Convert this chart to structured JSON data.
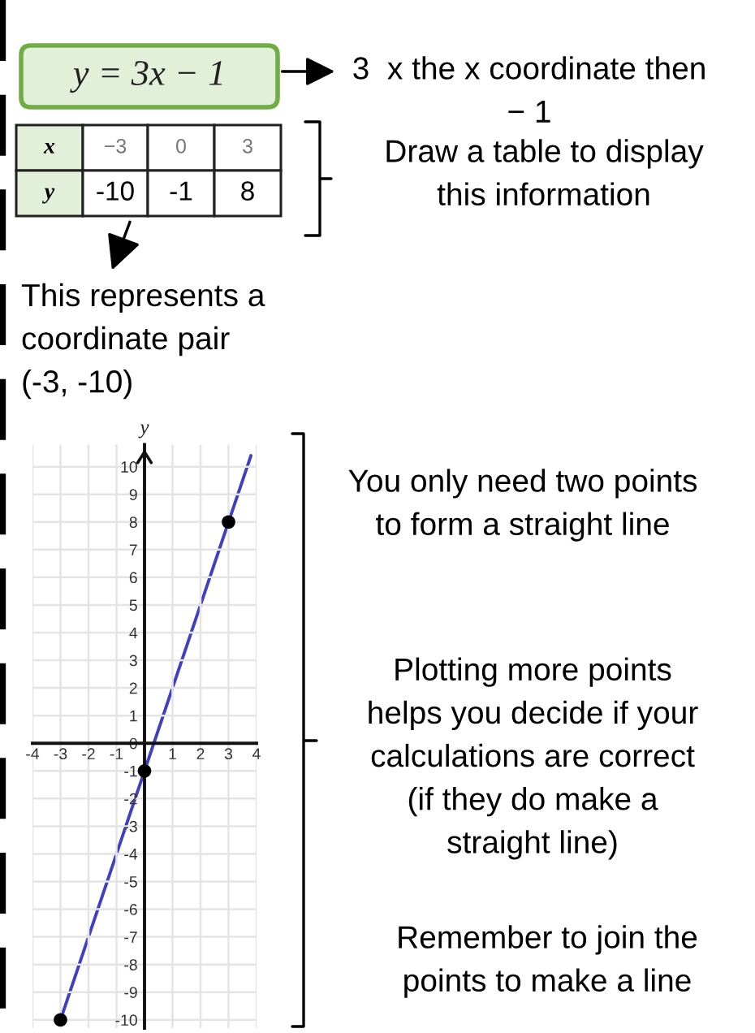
{
  "chart_data": {
    "type": "line",
    "title": "y = 3x − 1",
    "ylabel": "y",
    "annotations": [
      "3  x the x coordinate then\n− 1",
      "x",
      "−3",
      "0",
      "3",
      "y",
      "-10",
      "-1",
      "8",
      "Draw a table to display\nthis information",
      "This represents a\ncoordinate pair\n(-3, -10)",
      "You only need two points\nto form a straight line",
      "Plotting more points\nhelps you decide if your\ncalculations are correct\n(if they do make a\nstraight line)",
      "Remember to join the\npoints to make a line"
    ],
    "series": [
      {
        "color": "#4040c0",
        "x": [
          -3,
          3.8
        ],
        "values": [
          -10,
          10.4
        ]
      },
      {
        "type": "scatter",
        "color": "#000000",
        "marker": "circle",
        "x": [
          -3,
          0,
          3
        ],
        "values": [
          -10,
          -1,
          8
        ]
      }
    ],
    "xlim": [
      -4,
      4
    ],
    "ylim": [
      -10.3,
      10.8
    ],
    "xticks": [
      -4,
      -3,
      -2,
      -1,
      1,
      2,
      3,
      4
    ],
    "yticks": [
      -10,
      -9,
      -8,
      -7,
      -6,
      -5,
      -4,
      -3,
      -2,
      -1,
      0,
      1,
      2,
      3,
      4,
      5,
      6,
      7,
      8,
      9,
      10
    ],
    "grid": true
  }
}
